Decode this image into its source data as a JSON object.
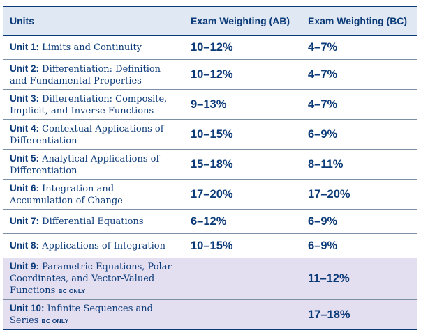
{
  "header": {
    "units": "Units",
    "ab": "Exam Weighting (AB)",
    "bc": "Exam Weighting (BC)"
  },
  "rows": [
    {
      "num": "Unit 1:",
      "title": "Limits and Continuity",
      "ab": "10–12%",
      "bc": "4–7%",
      "bc_only": ""
    },
    {
      "num": "Unit 2:",
      "title": "Differentiation: Definition and Fundamental Properties",
      "ab": "10–12%",
      "bc": "4–7%",
      "bc_only": ""
    },
    {
      "num": "Unit 3:",
      "title": "Differentiation: Composite, Implicit, and Inverse Functions",
      "ab": "9–13%",
      "bc": "4–7%",
      "bc_only": ""
    },
    {
      "num": "Unit 4:",
      "title": "Contextual Applications of Differentiation",
      "ab": "10–15%",
      "bc": "6–9%",
      "bc_only": ""
    },
    {
      "num": "Unit 5:",
      "title": "Analytical Applications of Differentiation",
      "ab": "15–18%",
      "bc": "8–11%",
      "bc_only": ""
    },
    {
      "num": "Unit 6:",
      "title": "Integration and Accumulation of Change",
      "ab": "17–20%",
      "bc": "17–20%",
      "bc_only": ""
    },
    {
      "num": "Unit 7:",
      "title": "Differential Equations",
      "ab": "6–12%",
      "bc": "6–9%",
      "bc_only": ""
    },
    {
      "num": "Unit 8:",
      "title": "Applications of Integration",
      "ab": "10–15%",
      "bc": "6–9%",
      "bc_only": ""
    },
    {
      "num": "Unit 9:",
      "title": "Parametric Equations, Polar Coordinates, and Vector-Valued Functions",
      "ab": "",
      "bc": "11–12%",
      "bc_only": "BC ONLY"
    },
    {
      "num": "Unit 10:",
      "title": "Infinite Sequences and Series",
      "ab": "",
      "bc": "17–18%",
      "bc_only": "BC ONLY"
    }
  ]
}
